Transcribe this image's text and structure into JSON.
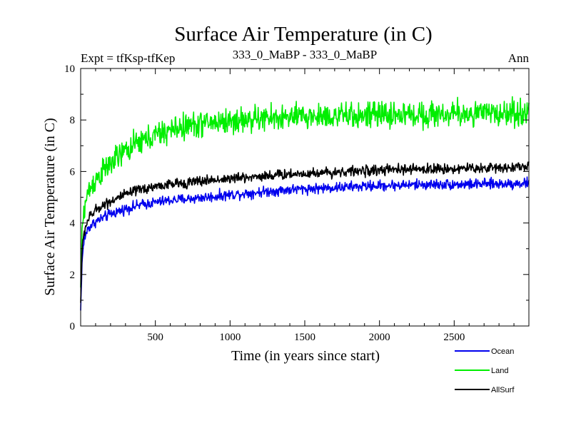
{
  "chart_data": {
    "type": "line",
    "title": "Surface Air Temperature (in C)",
    "subtitle_left": "Expt = tfKsp-tfKep",
    "subtitle_center": "333_0_MaBP - 333_0_MaBP",
    "subtitle_right": "Ann",
    "xlabel": "Time (in years since start)",
    "ylabel": "Surface Air Temperature (in C)",
    "xlim": [
      0,
      3000
    ],
    "ylim": [
      0,
      10
    ],
    "x_ticks": [
      500,
      1000,
      1500,
      2000,
      2500
    ],
    "y_ticks": [
      0,
      2,
      4,
      6,
      8,
      10
    ],
    "legend_position": "bottom-right",
    "series": [
      {
        "name": "Ocean",
        "color": "#0000ee",
        "noise": 0.1,
        "x": [
          0,
          10,
          25,
          50,
          100,
          150,
          200,
          300,
          400,
          500,
          600,
          700,
          800,
          900,
          1000,
          1200,
          1400,
          1600,
          1800,
          2000,
          2200,
          2400,
          2600,
          2800,
          3000
        ],
        "y": [
          0.6,
          2.6,
          3.4,
          3.8,
          4.05,
          4.2,
          4.35,
          4.55,
          4.7,
          4.8,
          4.88,
          4.93,
          4.98,
          5.03,
          5.1,
          5.2,
          5.3,
          5.35,
          5.4,
          5.45,
          5.48,
          5.5,
          5.5,
          5.52,
          5.55
        ]
      },
      {
        "name": "Land",
        "color": "#00ee00",
        "noise": 0.25,
        "x": [
          0,
          10,
          25,
          50,
          100,
          150,
          200,
          300,
          400,
          500,
          600,
          700,
          800,
          900,
          1000,
          1200,
          1400,
          1600,
          1800,
          2000,
          2200,
          2400,
          2600,
          2800,
          3000
        ],
        "y": [
          1.5,
          3.8,
          4.6,
          5.2,
          5.7,
          6.0,
          6.3,
          6.8,
          7.15,
          7.4,
          7.6,
          7.75,
          7.85,
          7.92,
          7.95,
          8.05,
          8.1,
          8.15,
          8.15,
          8.2,
          8.2,
          8.22,
          8.25,
          8.25,
          8.3
        ]
      },
      {
        "name": "AllSurf",
        "color": "#000000",
        "noise": 0.1,
        "x": [
          0,
          10,
          25,
          50,
          100,
          150,
          200,
          300,
          400,
          500,
          600,
          700,
          800,
          900,
          1000,
          1200,
          1400,
          1600,
          1800,
          2000,
          2200,
          2400,
          2600,
          2800,
          3000
        ],
        "y": [
          0.9,
          3.0,
          3.7,
          4.15,
          4.5,
          4.7,
          4.85,
          5.1,
          5.3,
          5.42,
          5.5,
          5.56,
          5.62,
          5.68,
          5.72,
          5.82,
          5.9,
          5.95,
          6.0,
          6.05,
          6.08,
          6.1,
          6.12,
          6.15,
          6.2
        ]
      }
    ]
  }
}
